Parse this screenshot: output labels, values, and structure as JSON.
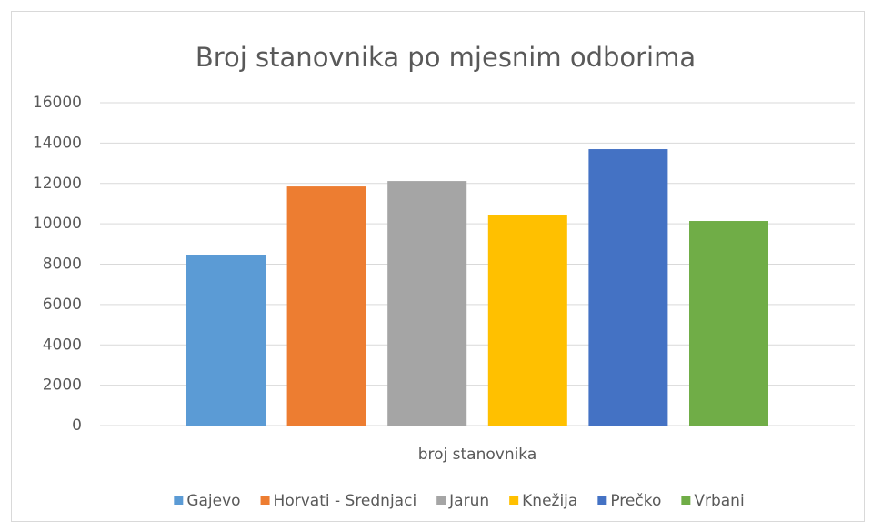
{
  "chart_data": {
    "type": "bar",
    "title": "Broj stanovnika po mjesnim odborima",
    "categories": [
      "broj stanovnika"
    ],
    "series": [
      {
        "name": "Gajevo",
        "color": "#5b9bd5",
        "values": [
          8430
        ]
      },
      {
        "name": "Horvati - Srednjaci",
        "color": "#ed7d31",
        "values": [
          11850
        ]
      },
      {
        "name": "Jarun",
        "color": "#a5a5a5",
        "values": [
          12120
        ]
      },
      {
        "name": "Knežija",
        "color": "#ffc000",
        "values": [
          10450
        ]
      },
      {
        "name": "Prečko",
        "color": "#4472c4",
        "values": [
          13700
        ]
      },
      {
        "name": "Vrbani",
        "color": "#70ad47",
        "values": [
          10140
        ]
      }
    ],
    "ylim": [
      0,
      16000
    ],
    "yticks": [
      0,
      2000,
      4000,
      6000,
      8000,
      10000,
      12000,
      14000,
      16000
    ],
    "grid": true,
    "legend": "bottom"
  }
}
